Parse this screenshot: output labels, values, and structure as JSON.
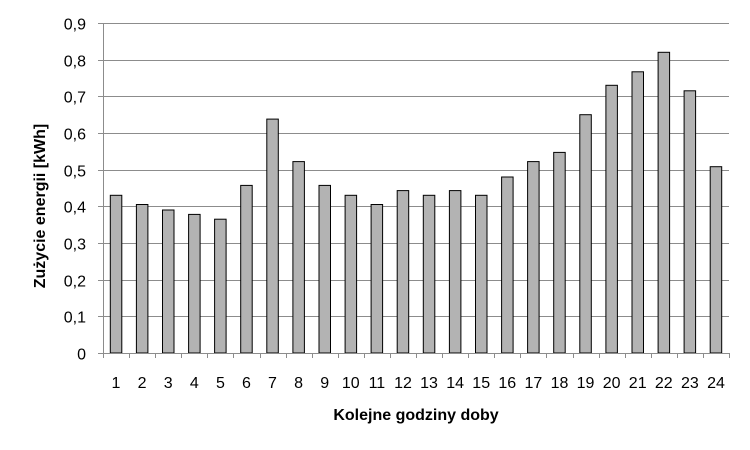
{
  "chart_data": {
    "type": "bar",
    "title": "",
    "xlabel": "Kolejne godziny doby",
    "ylabel": "Zużycie energii [kWh]",
    "categories": [
      "1",
      "2",
      "3",
      "4",
      "5",
      "6",
      "7",
      "8",
      "9",
      "10",
      "11",
      "12",
      "13",
      "14",
      "15",
      "16",
      "17",
      "18",
      "19",
      "20",
      "21",
      "22",
      "23",
      "24"
    ],
    "values": [
      0.43,
      0.405,
      0.39,
      0.378,
      0.365,
      0.457,
      0.638,
      0.522,
      0.457,
      0.43,
      0.405,
      0.443,
      0.43,
      0.443,
      0.43,
      0.48,
      0.522,
      0.547,
      0.65,
      0.73,
      0.767,
      0.82,
      0.715,
      0.508
    ],
    "ylim": [
      0,
      0.9
    ],
    "yticks": [
      "0",
      "0,1",
      "0,2",
      "0,3",
      "0,4",
      "0,5",
      "0,6",
      "0,7",
      "0,8",
      "0,9"
    ],
    "ytick_values": [
      0,
      0.1,
      0.2,
      0.3,
      0.4,
      0.5,
      0.6,
      0.7,
      0.8,
      0.9
    ],
    "grid": true,
    "bar_color": "#b3b3b3",
    "bar_edge_color": "#000000",
    "grid_color": "#8c8c8c",
    "legend": "none"
  }
}
